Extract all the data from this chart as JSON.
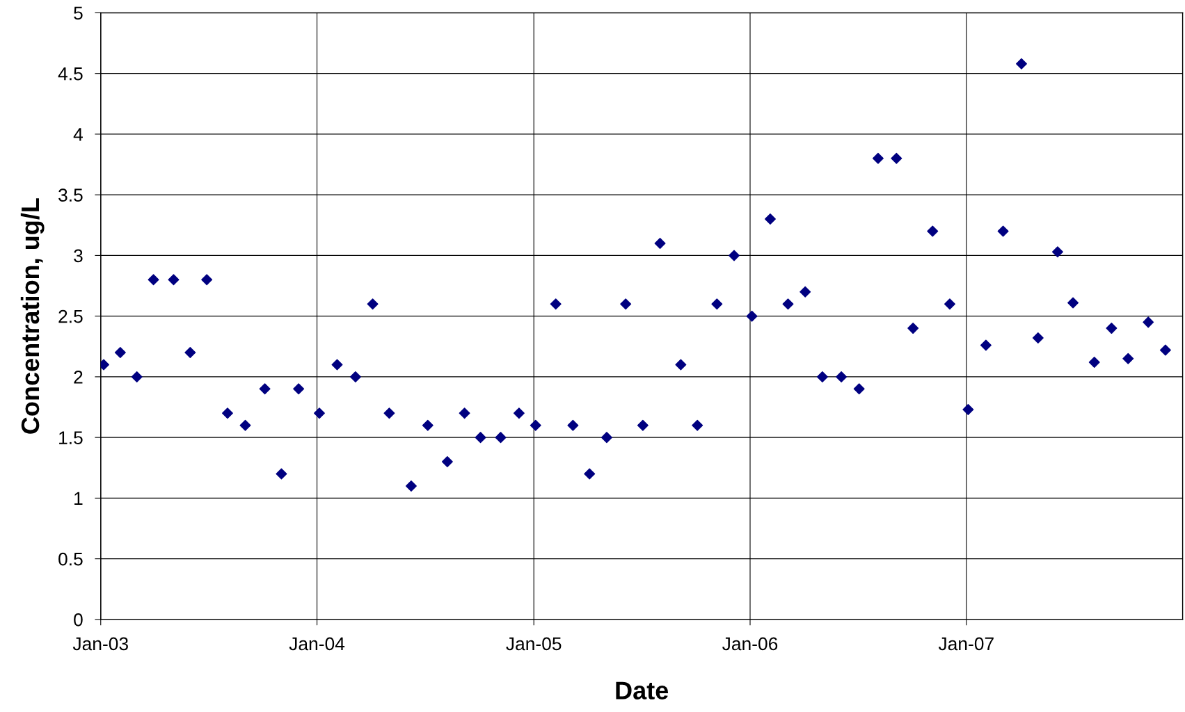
{
  "chart_data": {
    "type": "scatter",
    "xlabel": "Date",
    "ylabel": "Concentration, ug/L",
    "x": [
      "2003-01-06",
      "2003-02-03",
      "2003-03-03",
      "2003-03-31",
      "2003-05-04",
      "2003-06-01",
      "2003-06-29",
      "2003-08-03",
      "2003-09-02",
      "2003-10-05",
      "2003-11-02",
      "2003-12-01",
      "2004-01-05",
      "2004-02-04",
      "2004-03-06",
      "2004-04-04",
      "2004-05-02",
      "2004-06-08",
      "2004-07-06",
      "2004-08-08",
      "2004-09-06",
      "2004-10-03",
      "2004-11-06",
      "2004-12-07",
      "2005-01-04",
      "2005-02-07",
      "2005-03-08",
      "2005-04-05",
      "2005-05-04",
      "2005-06-05",
      "2005-07-04",
      "2005-08-02",
      "2005-09-06",
      "2005-10-04",
      "2005-11-06",
      "2005-12-05",
      "2006-01-04",
      "2006-02-04",
      "2006-03-06",
      "2006-04-04",
      "2006-05-03",
      "2006-06-04",
      "2006-07-04",
      "2006-08-05",
      "2006-09-05",
      "2006-10-03",
      "2006-11-05",
      "2006-12-04",
      "2007-01-04",
      "2007-02-03",
      "2007-03-04",
      "2007-04-04",
      "2007-05-02",
      "2007-06-04",
      "2007-06-30",
      "2007-08-05",
      "2007-09-03",
      "2007-10-01",
      "2007-11-04",
      "2007-12-03"
    ],
    "series": [
      {
        "color": "#000080",
        "values": [
          2.1,
          2.2,
          2.0,
          2.8,
          2.8,
          2.2,
          2.8,
          1.7,
          1.6,
          1.9,
          1.2,
          1.9,
          1.7,
          2.1,
          2.0,
          2.6,
          1.7,
          1.1,
          1.6,
          1.3,
          1.7,
          1.5,
          1.5,
          1.7,
          1.6,
          2.6,
          1.6,
          1.2,
          1.5,
          2.6,
          1.6,
          3.1,
          2.1,
          1.6,
          2.6,
          3.0,
          2.5,
          3.3,
          2.6,
          2.7,
          2.0,
          2.0,
          1.9,
          3.8,
          3.8,
          2.4,
          3.2,
          2.6,
          1.73,
          2.26,
          3.2,
          4.58,
          2.32,
          3.03,
          2.61,
          2.12,
          2.4,
          2.15,
          2.45,
          2.22
        ]
      }
    ],
    "xlim": [
      "2003-01-01",
      "2008-01-01"
    ],
    "xticks": [
      {
        "value": "2003-01-01",
        "label": "Jan-03"
      },
      {
        "value": "2004-01-01",
        "label": "Jan-04"
      },
      {
        "value": "2005-01-01",
        "label": "Jan-05"
      },
      {
        "value": "2006-01-01",
        "label": "Jan-06"
      },
      {
        "value": "2007-01-01",
        "label": "Jan-07"
      }
    ],
    "ylim": [
      0,
      5
    ],
    "yticks": [
      0,
      0.5,
      1,
      1.5,
      2,
      2.5,
      3,
      3.5,
      4,
      4.5,
      5
    ],
    "grid": true,
    "marker": "diamond"
  }
}
